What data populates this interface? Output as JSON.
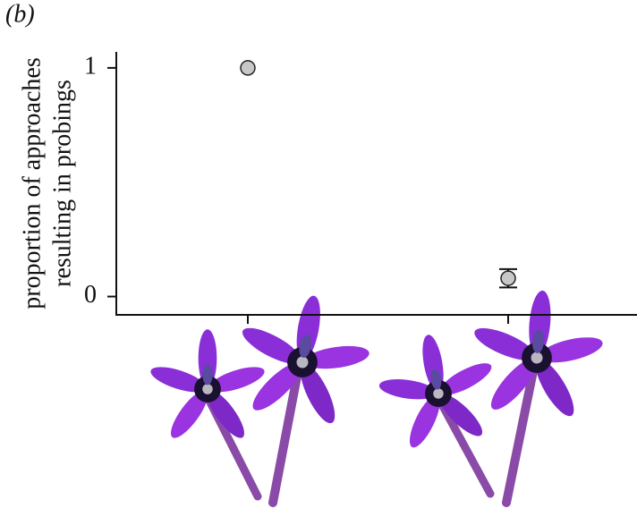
{
  "chart_data": {
    "type": "dot",
    "panel_label": "(b)",
    "ylabel": [
      "proportion of approaches",
      "resulting in probings"
    ],
    "categories": [
      null,
      null
    ],
    "series": [
      {
        "values": [
          1,
          0.08
        ],
        "errors": [
          null,
          0.04
        ],
        "color": "#c8c8c8"
      }
    ],
    "ylim": [
      -0.08,
      1.07
    ],
    "yticks": [
      0,
      1
    ]
  }
}
